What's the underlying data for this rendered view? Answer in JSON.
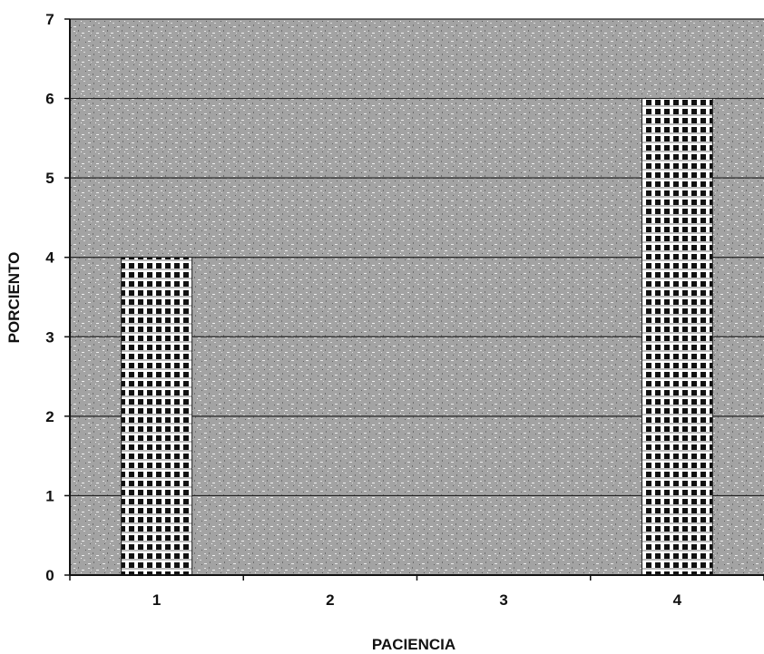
{
  "chart_data": {
    "type": "bar",
    "categories": [
      "1",
      "2",
      "3",
      "4"
    ],
    "values": [
      4,
      0,
      0,
      6
    ],
    "title": "",
    "xlabel": "PACIENCIA",
    "ylabel": "PORCIENTO",
    "ylim": [
      0,
      7
    ],
    "y_ticks": [
      "0",
      "1",
      "2",
      "3",
      "4",
      "5",
      "6",
      "7"
    ],
    "grid": true,
    "legend": "none",
    "colors": {
      "plot_background": "#9a9a9a",
      "bar_dark": "#111111",
      "bar_light": "#ffffff",
      "gridline": "#222222"
    }
  }
}
